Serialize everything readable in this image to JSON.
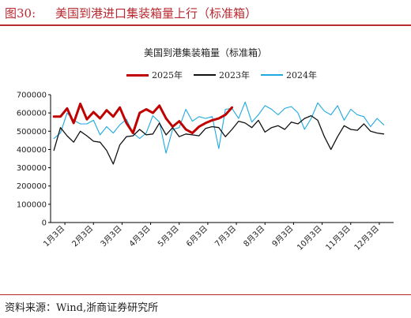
{
  "header": {
    "figure_number": "图30:",
    "figure_title": "美国到港进口集装箱量上行（标准箱）",
    "accent_color": "#b8282f"
  },
  "footer": {
    "source": "资料来源：Wind,浙商证券研究所"
  },
  "chart_data": {
    "type": "line",
    "title": "美国到港集装箱量（标准箱）",
    "xlabel": "",
    "ylabel": "",
    "ylim": [
      0,
      700000
    ],
    "yticks": [
      "0",
      "100000",
      "200000",
      "300000",
      "400000",
      "500000",
      "600000",
      "700000"
    ],
    "xticks": [
      "1月3日",
      "2月3日",
      "3月3日",
      "4月3日",
      "5月3日",
      "6月3日",
      "7月3日",
      "8月3日",
      "9月3日",
      "10月3日",
      "11月3日",
      "12月3日"
    ],
    "legend_position": "top",
    "grid": false,
    "series": [
      {
        "name": "2025年",
        "color": "#c00000",
        "stroke": 3,
        "values": [
          580000,
          580000,
          625000,
          545000,
          650000,
          565000,
          605000,
          570000,
          615000,
          580000,
          630000,
          545000,
          490000,
          600000,
          620000,
          600000,
          640000,
          570000,
          525000,
          555000,
          510000,
          490000,
          525000,
          545000,
          560000,
          570000,
          590000,
          630000
        ]
      },
      {
        "name": "2023年",
        "color": "#111111",
        "stroke": 1.3,
        "values": [
          395000,
          520000,
          475000,
          440000,
          500000,
          475000,
          445000,
          440000,
          395000,
          320000,
          425000,
          470000,
          475000,
          510000,
          480000,
          485000,
          545000,
          480000,
          520000,
          470000,
          485000,
          480000,
          475000,
          515000,
          525000,
          520000,
          470000,
          510000,
          555000,
          545000,
          520000,
          560000,
          495000,
          520000,
          530000,
          510000,
          550000,
          540000,
          570000,
          585000,
          560000,
          470000,
          400000,
          470000,
          530000,
          510000,
          505000,
          540000,
          500000,
          490000,
          485000
        ]
      },
      {
        "name": "2024年",
        "color": "#1ea9e0",
        "stroke": 1.1,
        "values": [
          460000,
          490000,
          600000,
          560000,
          540000,
          540000,
          560000,
          480000,
          525000,
          490000,
          535000,
          565000,
          490000,
          460000,
          490000,
          585000,
          550000,
          380000,
          510000,
          520000,
          620000,
          555000,
          580000,
          570000,
          580000,
          405000,
          620000,
          625000,
          570000,
          660000,
          550000,
          590000,
          640000,
          620000,
          590000,
          625000,
          635000,
          600000,
          510000,
          570000,
          655000,
          610000,
          590000,
          640000,
          560000,
          620000,
          590000,
          580000,
          525000,
          570000,
          535000
        ]
      }
    ]
  }
}
